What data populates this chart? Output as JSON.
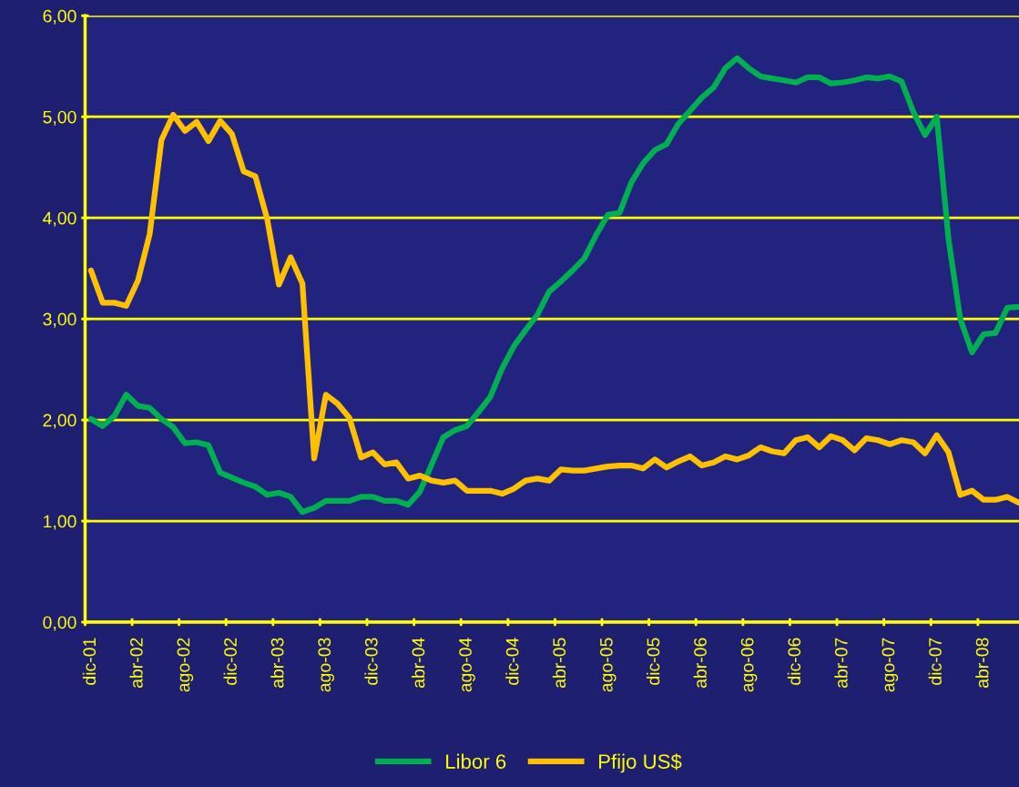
{
  "chart_data": {
    "type": "line",
    "categories": [
      "dic-01",
      null,
      null,
      null,
      "abr-02",
      null,
      null,
      null,
      "ago-02",
      null,
      null,
      null,
      "dic-02",
      null,
      null,
      null,
      "abr-03",
      null,
      null,
      null,
      "ago-03",
      null,
      null,
      null,
      "dic-03",
      null,
      null,
      null,
      "abr-04",
      null,
      null,
      null,
      "ago-04",
      null,
      null,
      null,
      "dic-04",
      null,
      null,
      null,
      "abr-05",
      null,
      null,
      null,
      "ago-05",
      null,
      null,
      null,
      "dic-05",
      null,
      null,
      null,
      "abr-06",
      null,
      null,
      null,
      "ago-06",
      null,
      null,
      null,
      "dic-06",
      null,
      null,
      null,
      "abr-07",
      null,
      null,
      null,
      "ago-07",
      null,
      null,
      null,
      "dic-07",
      null,
      null,
      null,
      "abr-08",
      null,
      null,
      null
    ],
    "series": [
      {
        "name": "Libor 6",
        "color": "#00b050",
        "values": [
          2.01,
          1.94,
          2.04,
          2.25,
          2.14,
          2.12,
          2.01,
          1.93,
          1.77,
          1.78,
          1.75,
          1.48,
          1.43,
          1.38,
          1.34,
          1.26,
          1.28,
          1.24,
          1.09,
          1.13,
          1.2,
          1.2,
          1.2,
          1.24,
          1.24,
          1.2,
          1.2,
          1.16,
          1.29,
          1.56,
          1.83,
          1.9,
          1.94,
          2.08,
          2.23,
          2.51,
          2.73,
          2.89,
          3.04,
          3.27,
          3.37,
          3.48,
          3.6,
          3.83,
          4.03,
          4.05,
          4.35,
          4.54,
          4.67,
          4.73,
          4.93,
          5.06,
          5.19,
          5.29,
          5.48,
          5.58,
          5.48,
          5.4,
          5.38,
          5.36,
          5.34,
          5.39,
          5.39,
          5.33,
          5.34,
          5.36,
          5.39,
          5.38,
          5.4,
          5.35,
          5.05,
          4.82,
          5.0,
          3.79,
          3.0,
          2.67,
          2.85,
          2.86,
          3.11,
          3.12
        ]
      },
      {
        "name": "Pfijo US$",
        "color": "#ffc000",
        "values": [
          3.48,
          3.16,
          3.16,
          3.13,
          3.38,
          3.84,
          4.77,
          5.02,
          4.86,
          4.95,
          4.76,
          4.96,
          4.83,
          4.46,
          4.41,
          3.99,
          3.34,
          3.61,
          3.35,
          1.62,
          2.25,
          2.16,
          2.02,
          1.63,
          1.68,
          1.56,
          1.58,
          1.42,
          1.45,
          1.4,
          1.38,
          1.4,
          1.3,
          1.3,
          1.3,
          1.27,
          1.32,
          1.4,
          1.42,
          1.4,
          1.51,
          1.5,
          1.5,
          1.52,
          1.54,
          1.55,
          1.55,
          1.52,
          1.61,
          1.53,
          1.59,
          1.64,
          1.55,
          1.58,
          1.64,
          1.61,
          1.65,
          1.73,
          1.69,
          1.67,
          1.8,
          1.83,
          1.73,
          1.84,
          1.8,
          1.7,
          1.82,
          1.8,
          1.76,
          1.8,
          1.78,
          1.67,
          1.85,
          1.68,
          1.26,
          1.3,
          1.21,
          1.21,
          1.24,
          1.18
        ]
      }
    ],
    "ylim": [
      0,
      6
    ],
    "yticks": [
      {
        "value": 0,
        "label": "0,00"
      },
      {
        "value": 1,
        "label": "1,00"
      },
      {
        "value": 2,
        "label": "2,00"
      },
      {
        "value": 3,
        "label": "3,00"
      },
      {
        "value": 4,
        "label": "4,00"
      },
      {
        "value": 5,
        "label": "5,00"
      },
      {
        "value": 6,
        "label": "6,00"
      }
    ],
    "grid": "y",
    "legend": "bottom",
    "marker": "none",
    "line_style": "solid"
  }
}
